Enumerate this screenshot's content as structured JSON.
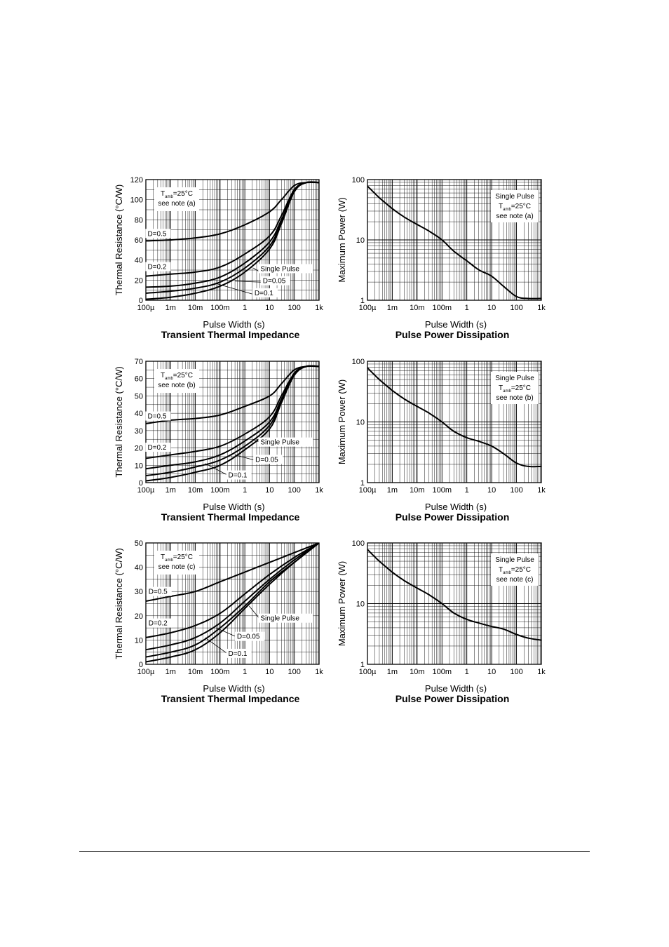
{
  "chart_data": [
    {
      "id": "tti_a",
      "type": "line",
      "title": "Transient Thermal Impedance",
      "xlabel": "Pulse Width (s)",
      "ylabel": "Thermal Resistance (°C/W)",
      "xscale": "log",
      "xlim": [
        0.0001,
        1000
      ],
      "ylim": [
        0,
        120
      ],
      "yticks": [
        0,
        20,
        40,
        60,
        80,
        100,
        120
      ],
      "xtick_labels": [
        "100µ",
        "1m",
        "10m",
        "100m",
        "1",
        "10",
        "100",
        "1k"
      ],
      "grid": true,
      "legend": {
        "line1": "T",
        "line1_sub": "amb",
        "line1_rest": "=25°C",
        "line2": "see note (a)"
      },
      "series": [
        {
          "name": "D=0.5",
          "x": [
            0.0001,
            0.001,
            0.01,
            0.1,
            1,
            10,
            30,
            100,
            300,
            1000
          ],
          "y": [
            59,
            60,
            62,
            66,
            75,
            88,
            100,
            114,
            117,
            117
          ]
        },
        {
          "name": "D=0.2",
          "x": [
            0.0001,
            0.001,
            0.01,
            0.1,
            1,
            10,
            30,
            100,
            300,
            1000
          ],
          "y": [
            24,
            26,
            28,
            33,
            46,
            64,
            84,
            110,
            117,
            117
          ]
        },
        {
          "name": "D=0.1",
          "x": [
            0.0001,
            0.001,
            0.01,
            0.1,
            1,
            10,
            30,
            100,
            300,
            1000
          ],
          "y": [
            13,
            14,
            17,
            23,
            37,
            58,
            80,
            109,
            117,
            117
          ]
        },
        {
          "name": "D=0.05",
          "x": [
            0.0001,
            0.001,
            0.01,
            0.1,
            1,
            10,
            30,
            100,
            300,
            1000
          ],
          "y": [
            7,
            9,
            12,
            18,
            32,
            54,
            78,
            108,
            117,
            117
          ]
        },
        {
          "name": "Single Pulse",
          "x": [
            0.0001,
            0.001,
            0.01,
            0.1,
            1,
            10,
            30,
            100,
            300,
            1000
          ],
          "y": [
            1,
            3,
            7,
            14,
            28,
            51,
            76,
            108,
            117,
            117
          ]
        }
      ],
      "labels": [
        {
          "text": "D=0.5",
          "x": 0.00011,
          "y": 64
        },
        {
          "text": "D=0.2",
          "x": 0.00011,
          "y": 31
        },
        {
          "text": "Single Pulse",
          "x": 4,
          "y": 29
        },
        {
          "text": "D=0.05",
          "x": 5,
          "y": 17
        },
        {
          "text": "D=0.1",
          "x": 2.3,
          "y": 5
        }
      ],
      "leaders": [
        {
          "from": [
            3.5,
            29
          ],
          "to": [
            2.2,
            32
          ]
        },
        {
          "from": [
            4.5,
            18
          ],
          "to": [
            0.4,
            19
          ]
        },
        {
          "from": [
            2.1,
            6
          ],
          "to": [
            0.06,
            17
          ]
        }
      ]
    },
    {
      "id": "ppd_a",
      "type": "line",
      "title": "Pulse Power Dissipation",
      "xlabel": "Pulse Width (s)",
      "ylabel": "Maximum Power (W)",
      "xscale": "log",
      "yscale": "log",
      "xlim": [
        0.0001,
        1000
      ],
      "ylim": [
        1,
        100
      ],
      "ytick_labels": [
        "1",
        "10",
        "100"
      ],
      "xtick_labels": [
        "100µ",
        "1m",
        "10m",
        "100m",
        "1",
        "10",
        "100",
        "1k"
      ],
      "grid": true,
      "legend": {
        "line0": "Single Pulse",
        "line1": "T",
        "line1_sub": "amb",
        "line1_rest": "=25°C",
        "line2": "see note (a)"
      },
      "series": [
        {
          "name": "",
          "x": [
            0.0001,
            0.0003,
            0.001,
            0.003,
            0.01,
            0.03,
            0.1,
            0.3,
            1,
            3,
            10,
            30,
            100,
            300,
            1000
          ],
          "y": [
            78,
            50,
            33,
            24,
            18,
            14,
            10,
            6.5,
            4.5,
            3.2,
            2.5,
            1.7,
            1.15,
            1.07,
            1.07
          ]
        }
      ]
    },
    {
      "id": "tti_b",
      "type": "line",
      "title": "Transient Thermal Impedance",
      "xlabel": "Pulse Width (s)",
      "ylabel": "Thermal Resistance (°C/W)",
      "xscale": "log",
      "xlim": [
        0.0001,
        1000
      ],
      "ylim": [
        0,
        70
      ],
      "yticks": [
        0,
        10,
        20,
        30,
        40,
        50,
        60,
        70
      ],
      "xtick_labels": [
        "100µ",
        "1m",
        "10m",
        "100m",
        "1",
        "10",
        "100",
        "1k"
      ],
      "grid": true,
      "legend": {
        "line1": "T",
        "line1_sub": "amb",
        "line1_rest": "=25°C",
        "line2": "see note (b)"
      },
      "series": [
        {
          "name": "D=0.5",
          "x": [
            0.0001,
            0.001,
            0.01,
            0.1,
            1,
            10,
            30,
            100,
            300,
            1000
          ],
          "y": [
            34,
            36,
            37,
            39,
            44,
            50,
            57,
            65,
            67,
            67
          ]
        },
        {
          "name": "D=0.2",
          "x": [
            0.0001,
            0.001,
            0.01,
            0.1,
            1,
            10,
            30,
            100,
            300,
            1000
          ],
          "y": [
            14,
            16,
            18,
            21,
            28,
            38,
            50,
            63,
            67,
            67
          ]
        },
        {
          "name": "D=0.1",
          "x": [
            0.0001,
            0.001,
            0.01,
            0.1,
            1,
            10,
            30,
            100,
            300,
            1000
          ],
          "y": [
            8,
            10,
            12,
            16,
            24,
            35,
            48,
            63,
            67,
            67
          ]
        },
        {
          "name": "D=0.05",
          "x": [
            0.0001,
            0.001,
            0.01,
            0.1,
            1,
            10,
            30,
            100,
            300,
            1000
          ],
          "y": [
            4,
            6,
            9,
            13,
            21,
            33,
            47,
            62,
            67,
            67
          ]
        },
        {
          "name": "Single Pulse",
          "x": [
            0.0001,
            0.001,
            0.01,
            0.1,
            1,
            10,
            30,
            100,
            300,
            1000
          ],
          "y": [
            1,
            3,
            6,
            10,
            19,
            31,
            46,
            62,
            67,
            67
          ]
        }
      ],
      "labels": [
        {
          "text": "D=0.5",
          "x": 0.00011,
          "y": 37
        },
        {
          "text": "D=0.2",
          "x": 0.00011,
          "y": 19
        },
        {
          "text": "Single Pulse",
          "x": 4,
          "y": 22
        },
        {
          "text": "D=0.05",
          "x": 2.5,
          "y": 12
        },
        {
          "text": "D=0.1",
          "x": 0.2,
          "y": 3
        }
      ],
      "leaders": [
        {
          "from": [
            3.8,
            23.5
          ],
          "to": [
            2.4,
            24.5
          ]
        },
        {
          "from": [
            2.4,
            13
          ],
          "to": [
            0.4,
            16
          ]
        },
        {
          "from": [
            0.19,
            4.5
          ],
          "to": [
            0.025,
            11
          ]
        }
      ]
    },
    {
      "id": "ppd_b",
      "type": "line",
      "title": "Pulse Power Dissipation",
      "xlabel": "Pulse Width (s)",
      "ylabel": "Maximum Power (W)",
      "xscale": "log",
      "yscale": "log",
      "xlim": [
        0.0001,
        1000
      ],
      "ylim": [
        1,
        100
      ],
      "ytick_labels": [
        "1",
        "10",
        "100"
      ],
      "xtick_labels": [
        "100µ",
        "1m",
        "10m",
        "100m",
        "1",
        "10",
        "100",
        "1k"
      ],
      "grid": true,
      "legend": {
        "line0": "Single Pulse",
        "line1": "T",
        "line1_sub": "amb",
        "line1_rest": "=25°C",
        "line2": "see note (b)"
      },
      "series": [
        {
          "name": "",
          "x": [
            0.0001,
            0.0003,
            0.001,
            0.003,
            0.01,
            0.03,
            0.1,
            0.3,
            1,
            3,
            10,
            30,
            100,
            300,
            1000
          ],
          "y": [
            78,
            50,
            33,
            24,
            18,
            14,
            10,
            7,
            5.5,
            4.8,
            4,
            3,
            2.1,
            1.85,
            1.85
          ]
        }
      ]
    },
    {
      "id": "tti_c",
      "type": "line",
      "title": "Transient Thermal Impedance",
      "xlabel": "Pulse Width (s)",
      "ylabel": "Thermal Resistance (°C/W)",
      "xscale": "log",
      "xlim": [
        0.0001,
        1000
      ],
      "ylim": [
        0,
        50
      ],
      "yticks": [
        0,
        10,
        20,
        30,
        40,
        50
      ],
      "xtick_labels": [
        "100µ",
        "1m",
        "10m",
        "100m",
        "1",
        "10",
        "100",
        "1k"
      ],
      "grid": true,
      "legend": {
        "line1": "T",
        "line1_sub": "amb",
        "line1_rest": "=25°C",
        "line2": "see note (c)"
      },
      "series": [
        {
          "name": "D=0.5",
          "x": [
            0.0001,
            0.001,
            0.01,
            0.1,
            1,
            10,
            100,
            1000
          ],
          "y": [
            26,
            28,
            30,
            34,
            38,
            42,
            46,
            50
          ]
        },
        {
          "name": "D=0.2",
          "x": [
            0.0001,
            0.001,
            0.01,
            0.1,
            1,
            10,
            100,
            1000
          ],
          "y": [
            11,
            13,
            16,
            21,
            29,
            37,
            44,
            50
          ]
        },
        {
          "name": "D=0.1",
          "x": [
            0.0001,
            0.001,
            0.01,
            0.1,
            1,
            10,
            100,
            1000
          ],
          "y": [
            6,
            8,
            11,
            17,
            26,
            35,
            43,
            50
          ]
        },
        {
          "name": "D=0.05",
          "x": [
            0.0001,
            0.001,
            0.01,
            0.1,
            1,
            10,
            100,
            1000
          ],
          "y": [
            3,
            5,
            8,
            15,
            24,
            34,
            42,
            50
          ]
        },
        {
          "name": "Single Pulse",
          "x": [
            0.0001,
            0.001,
            0.01,
            0.1,
            1,
            10,
            100,
            1000
          ],
          "y": [
            1,
            3,
            6,
            13,
            23,
            33,
            42,
            50
          ]
        }
      ],
      "labels": [
        {
          "text": "D=0.5",
          "x": 0.00012,
          "y": 29
        },
        {
          "text": "D=0.2",
          "x": 0.00012,
          "y": 16
        },
        {
          "text": "Single Pulse",
          "x": 4,
          "y": 18
        },
        {
          "text": "D=0.05",
          "x": 0.45,
          "y": 10.5
        },
        {
          "text": "D=0.1",
          "x": 0.2,
          "y": 3.5
        }
      ],
      "leaders": [
        {
          "from": [
            3.8,
            19
          ],
          "to": [
            1.5,
            24
          ]
        },
        {
          "from": [
            0.42,
            11.5
          ],
          "to": [
            0.07,
            15
          ]
        },
        {
          "from": [
            0.19,
            4.5
          ],
          "to": [
            0.025,
            11
          ]
        }
      ]
    },
    {
      "id": "ppd_c",
      "type": "line",
      "title": "Pulse Power Dissipation",
      "xlabel": "Pulse Width (s)",
      "ylabel": "Maximum Power (W)",
      "xscale": "log",
      "yscale": "log",
      "xlim": [
        0.0001,
        1000
      ],
      "ylim": [
        1,
        100
      ],
      "ytick_labels": [
        "1",
        "10",
        "100"
      ],
      "xtick_labels": [
        "100µ",
        "1m",
        "10m",
        "100m",
        "1",
        "10",
        "100",
        "1k"
      ],
      "grid": true,
      "legend": {
        "line0": "Single Pulse",
        "line1": "T",
        "line1_sub": "amb",
        "line1_rest": "=25°C",
        "line2": "see note (c)"
      },
      "series": [
        {
          "name": "",
          "x": [
            0.0001,
            0.0003,
            0.001,
            0.003,
            0.01,
            0.03,
            0.1,
            0.3,
            1,
            3,
            10,
            30,
            100,
            300,
            1000
          ],
          "y": [
            78,
            50,
            33,
            24,
            18,
            14,
            10,
            7,
            5.5,
            4.8,
            4.2,
            3.8,
            3.1,
            2.7,
            2.5
          ]
        }
      ]
    }
  ]
}
